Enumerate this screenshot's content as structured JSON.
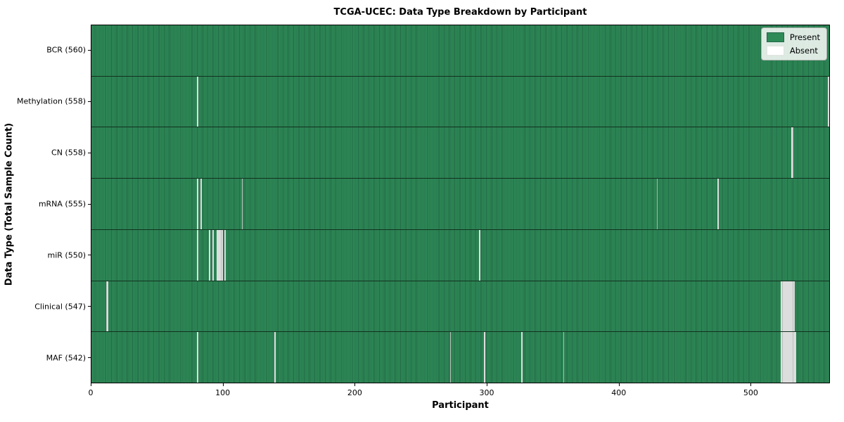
{
  "figure": {
    "title": "TCGA-UCEC: Data Type Breakdown by Participant",
    "xlabel": "Participant",
    "ylabel": "Data Type (Total Sample Count)"
  },
  "legend": {
    "present_label": "Present",
    "absent_label": "Absent"
  },
  "colors": {
    "present": "#2e8b57",
    "present_edge": "#216745",
    "absent": "#ffffff",
    "row_separator": "#12311f",
    "legend_background": "#eef1ee"
  },
  "chart_data": {
    "type": "heatmap",
    "title": "TCGA-UCEC: Data Type Breakdown by Participant",
    "xlabel": "Participant",
    "ylabel": "Data Type (Total Sample Count)",
    "legend_entries": [
      "Present",
      "Absent"
    ],
    "legend_position": "upper right",
    "n_participants": 560,
    "xlim": [
      0,
      560
    ],
    "x_ticks": [
      0,
      100,
      200,
      300,
      400,
      500
    ],
    "grid": false,
    "rows": [
      {
        "label": "BCR (560)",
        "data_type": "BCR",
        "present_count": 560,
        "absent_participants": []
      },
      {
        "label": "Methylation (558)",
        "data_type": "Methylation",
        "present_count": 558,
        "absent_participants": [
          80,
          559
        ]
      },
      {
        "label": "CN (558)",
        "data_type": "CN",
        "present_count": 558,
        "absent_participants": [
          531,
          532
        ]
      },
      {
        "label": "mRNA (555)",
        "data_type": "mRNA",
        "present_count": 555,
        "absent_participants": [
          80,
          83,
          114,
          429,
          475
        ]
      },
      {
        "label": "miR (550)",
        "data_type": "miR",
        "present_count": 550,
        "absent_participants": [
          80,
          89,
          92,
          95,
          96,
          97,
          98,
          99,
          101,
          294
        ]
      },
      {
        "label": "Clinical (547)",
        "data_type": "Clinical",
        "present_count": 547,
        "absent_participants": [
          11,
          12,
          523,
          524,
          525,
          526,
          527,
          528,
          529,
          530,
          531,
          532,
          533
        ]
      },
      {
        "label": "MAF (542)",
        "data_type": "MAF",
        "present_count": 542,
        "absent_participants": [
          80,
          139,
          272,
          298,
          326,
          358,
          523,
          524,
          525,
          526,
          527,
          528,
          529,
          530,
          531,
          532,
          533,
          534
        ]
      }
    ]
  }
}
